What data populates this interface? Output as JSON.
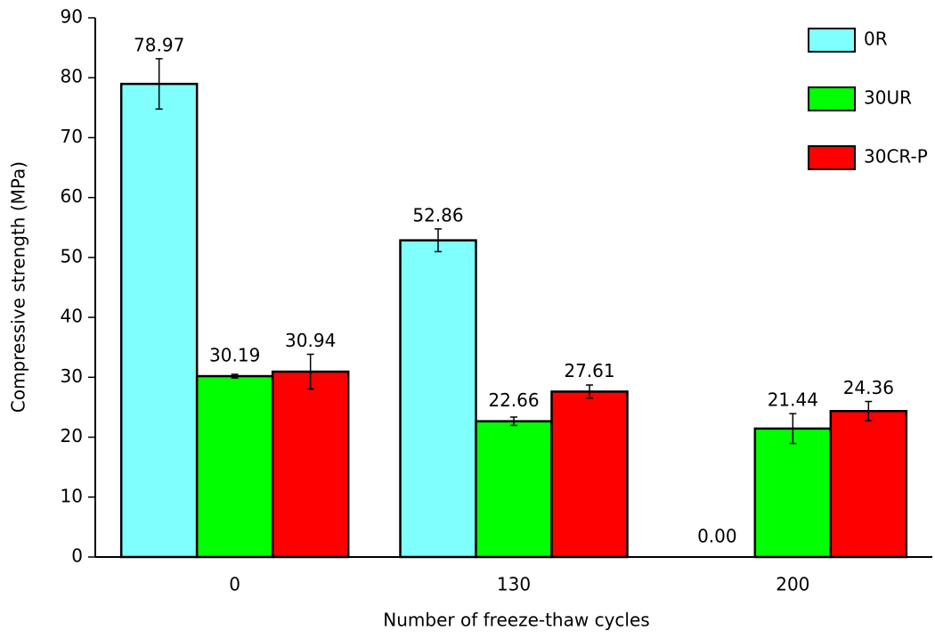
{
  "chart_data": {
    "type": "bar",
    "x_label": "Number of freeze-thaw cycles",
    "y_label": "Compressive strength (MPa)",
    "categories": [
      "0",
      "130",
      "200"
    ],
    "series": [
      {
        "name": "0R",
        "color": "#80ffff",
        "values": [
          78.97,
          52.86,
          0
        ],
        "value_labels": [
          "78.97",
          "52.86",
          "0.00"
        ],
        "errors": [
          4.2,
          1.9,
          0
        ]
      },
      {
        "name": "30UR",
        "color": "#00ff00",
        "values": [
          30.19,
          22.66,
          21.44
        ],
        "errors": [
          0.3,
          0.7,
          2.5
        ]
      },
      {
        "name": "30CR-P",
        "color": "#ff0000",
        "values": [
          30.94,
          27.61,
          24.36
        ],
        "errors": [
          2.9,
          1.1,
          1.6
        ]
      }
    ],
    "ylim": [
      0,
      90
    ],
    "yticks": [
      0,
      10,
      20,
      30,
      40,
      50,
      60,
      70,
      80,
      90
    ],
    "legend": "top-right"
  }
}
